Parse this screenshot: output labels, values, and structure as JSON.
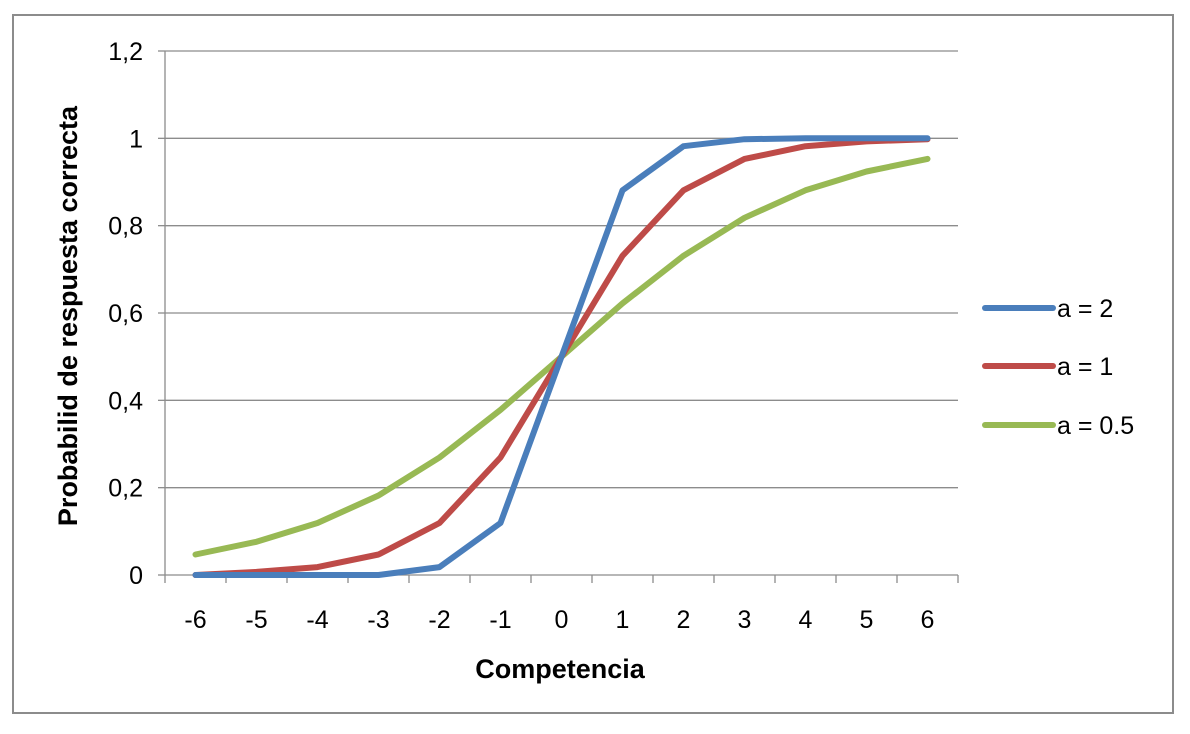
{
  "chart_data": {
    "type": "line",
    "title": "",
    "xlabel": "Competencia",
    "ylabel": "Probabilid de respuesta correcta",
    "x": [
      -6,
      -5,
      -4,
      -3,
      -2,
      -1,
      0,
      1,
      2,
      3,
      4,
      5,
      6
    ],
    "x_tick_labels": [
      "-6",
      "-5",
      "-4",
      "-3",
      "-2",
      "-1",
      "0",
      "1",
      "2",
      "3",
      "4",
      "5",
      "6"
    ],
    "y_tick_labels": [
      "0",
      "0,2",
      "0,4",
      "0,6",
      "0,8",
      "1",
      "1,2"
    ],
    "y_ticks": [
      0,
      0.2,
      0.4,
      0.6,
      0.8,
      1.0,
      1.2
    ],
    "ylim": [
      0,
      1.2
    ],
    "grid": "horizontal",
    "legend_position": "right",
    "series": [
      {
        "name": "a = 2",
        "color": "#4a7ebb",
        "values": [
          0.0,
          0.0,
          0.0,
          0.0,
          0.018,
          0.119,
          0.5,
          0.881,
          0.982,
          0.998,
          1.0,
          1.0,
          1.0
        ]
      },
      {
        "name": "a = 1",
        "color": "#be4b48",
        "values": [
          0.0,
          0.007,
          0.018,
          0.047,
          0.119,
          0.269,
          0.5,
          0.731,
          0.881,
          0.953,
          0.982,
          0.993,
          0.998
        ]
      },
      {
        "name": "a = 0.5",
        "color": "#98b954",
        "values": [
          0.047,
          0.076,
          0.119,
          0.182,
          0.269,
          0.378,
          0.5,
          0.622,
          0.731,
          0.818,
          0.881,
          0.924,
          0.953
        ]
      }
    ]
  }
}
